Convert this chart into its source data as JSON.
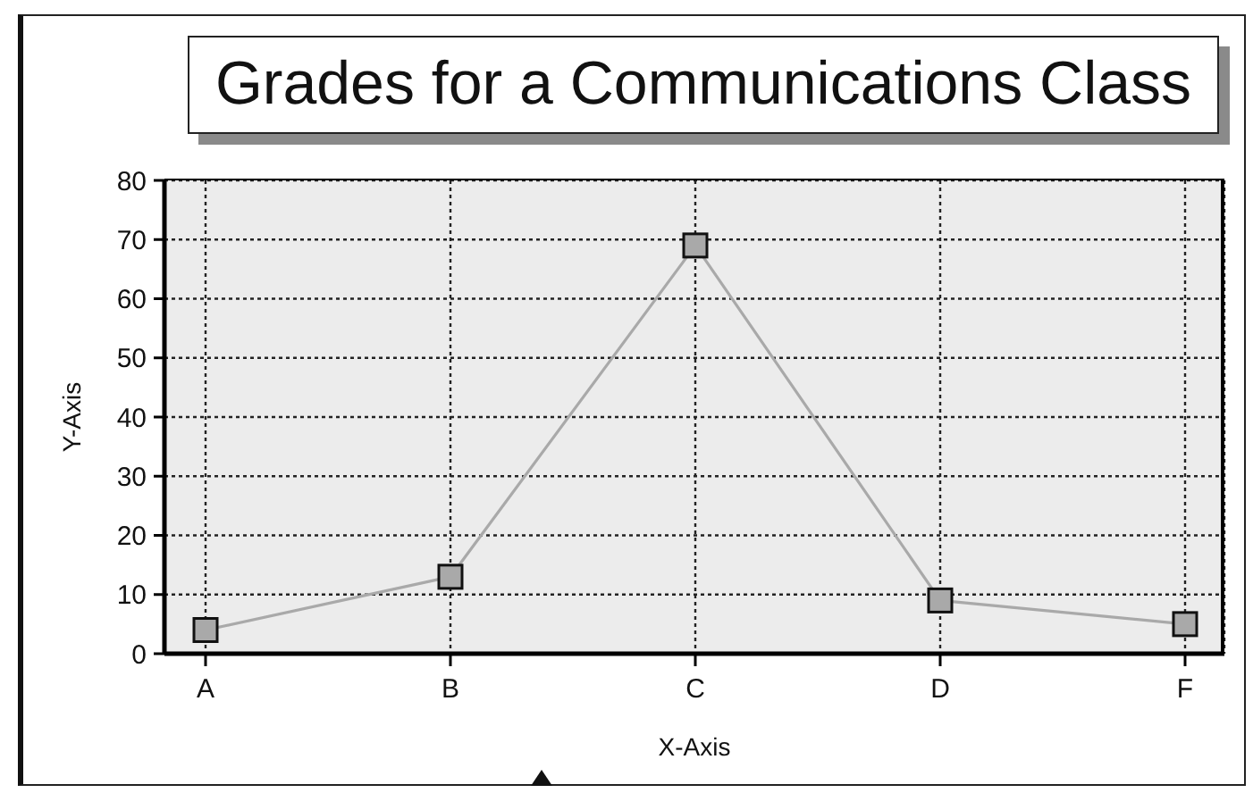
{
  "chart_data": {
    "type": "line",
    "title": "Grades for a Communications Class",
    "xlabel": "X-Axis",
    "ylabel": "Y-Axis",
    "categories": [
      "A",
      "B",
      "C",
      "D",
      "F"
    ],
    "series": [
      {
        "color": "#a9a9a9",
        "values": [
          4,
          13,
          69,
          9,
          5
        ]
      }
    ],
    "ylim": [
      0,
      80
    ],
    "yticks": [
      0,
      10,
      20,
      30,
      40,
      50,
      60,
      70,
      80
    ],
    "grid": true,
    "marker": "square",
    "line_style": "solid"
  }
}
